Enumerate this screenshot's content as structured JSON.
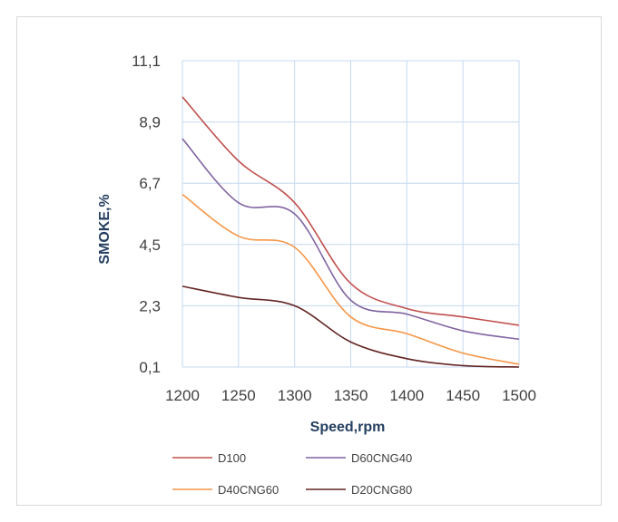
{
  "chart_data": {
    "type": "line",
    "title": "",
    "xlabel": "Speed,rpm",
    "ylabel": "SMOKE,%",
    "x": [
      1200,
      1250,
      1300,
      1350,
      1400,
      1450,
      1500
    ],
    "x_ticks": [
      "1200",
      "1250",
      "1300",
      "1350",
      "1400",
      "1450",
      "1500"
    ],
    "y_ticks": [
      "0,1",
      "2,3",
      "4,5",
      "6,7",
      "8,9",
      "11,1"
    ],
    "y_tick_values": [
      0.1,
      2.3,
      4.5,
      6.7,
      8.9,
      11.1
    ],
    "xlim": [
      1200,
      1500
    ],
    "ylim": [
      0.1,
      11.1
    ],
    "grid": true,
    "legend_position": "bottom",
    "series": [
      {
        "name": "D100",
        "color": "#c0504d",
        "values": [
          9.8,
          7.5,
          6.0,
          3.1,
          2.2,
          1.9,
          1.6
        ]
      },
      {
        "name": "D60CNG40",
        "color": "#8064a2",
        "values": [
          8.3,
          6.0,
          5.6,
          2.5,
          2.0,
          1.4,
          1.1
        ]
      },
      {
        "name": "D40CNG60",
        "color": "#f79646",
        "values": [
          6.3,
          4.8,
          4.4,
          1.9,
          1.3,
          0.6,
          0.2
        ]
      },
      {
        "name": "D20CNG80",
        "color": "#632523",
        "values": [
          3.0,
          2.6,
          2.3,
          1.0,
          0.4,
          0.15,
          0.1
        ]
      }
    ]
  }
}
